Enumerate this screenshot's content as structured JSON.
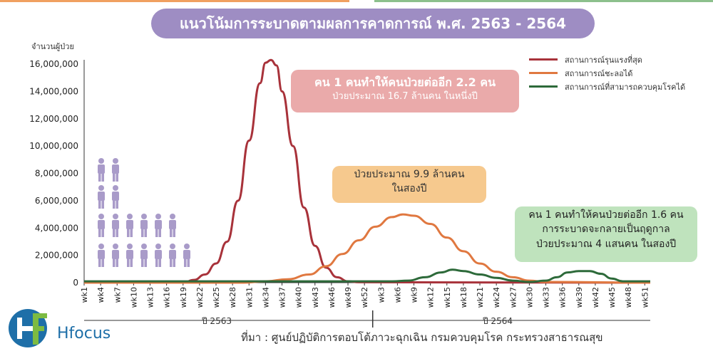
{
  "title": "แนวโน้มการระบาดตามผลการคาดการณ์ พ.ศ. 2563 - 2564",
  "chart_data": {
    "type": "line",
    "title": "แนวโน้มการระบาดตามผลการคาดการณ์ พ.ศ. 2563 - 2564",
    "ylabel": "จำนวนผู้ป่วย",
    "ylim": [
      0,
      16000000
    ],
    "yticks": [
      0,
      2000000,
      4000000,
      6000000,
      8000000,
      10000000,
      12000000,
      14000000,
      16000000
    ],
    "ytick_labels": [
      "0",
      "2,000,000",
      "4,000,000",
      "6,000,000",
      "8,000,000",
      "10,000,000",
      "12,000,000",
      "14,000,000",
      "16,000,000"
    ],
    "xlim": [
      1,
      104
    ],
    "xtick_weeks": [
      1,
      4,
      7,
      10,
      13,
      16,
      19,
      22,
      25,
      28,
      31,
      34,
      37,
      40,
      43,
      46,
      49,
      52,
      55,
      58,
      61,
      64,
      67,
      70,
      73,
      76,
      79,
      82,
      85,
      88,
      91,
      94,
      97,
      100,
      103
    ],
    "xtick_labels": [
      "wk1",
      "wk4",
      "wk7",
      "wk10",
      "wk13",
      "wk16",
      "wk19",
      "wk22",
      "wk25",
      "wk28",
      "wk31",
      "wk34",
      "wk37",
      "wk40",
      "wk43",
      "wk46",
      "wk49",
      "wk52",
      "wk3",
      "wk6",
      "wk9",
      "wk12",
      "wk15",
      "wk18",
      "wk21",
      "wk24",
      "wk27",
      "wk30",
      "wk33",
      "wk36",
      "wk39",
      "wk42",
      "wk45",
      "wk48",
      "wk51"
    ],
    "year_labels": [
      {
        "label": "ปี  2563",
        "weeks": [
          1,
          52
        ]
      },
      {
        "label": "ปี  2564",
        "weeks": [
          53,
          104
        ]
      }
    ],
    "legend_position": "top-right",
    "grid": false,
    "series": [
      {
        "name": "สถานการณ์รุนแรงที่สุด",
        "color": "#a8323a",
        "points": [
          [
            1,
            0
          ],
          [
            19,
            0
          ],
          [
            21,
            200000
          ],
          [
            23,
            600000
          ],
          [
            25,
            1400000
          ],
          [
            27,
            3000000
          ],
          [
            29,
            6000000
          ],
          [
            31,
            10400000
          ],
          [
            33,
            14600000
          ],
          [
            34,
            16100000
          ],
          [
            35,
            16300000
          ],
          [
            36,
            15900000
          ],
          [
            37,
            14000000
          ],
          [
            39,
            10000000
          ],
          [
            41,
            5500000
          ],
          [
            43,
            2700000
          ],
          [
            45,
            1100000
          ],
          [
            47,
            400000
          ],
          [
            49,
            100000
          ],
          [
            51,
            30000
          ],
          [
            104,
            0
          ]
        ]
      },
      {
        "name": "สถานการณ์ชะลอได้",
        "color": "#e07840",
        "points": [
          [
            1,
            0
          ],
          [
            30,
            0
          ],
          [
            34,
            100000
          ],
          [
            38,
            250000
          ],
          [
            42,
            600000
          ],
          [
            45,
            1200000
          ],
          [
            48,
            2100000
          ],
          [
            51,
            3100000
          ],
          [
            54,
            4100000
          ],
          [
            57,
            4800000
          ],
          [
            59,
            5000000
          ],
          [
            61,
            4900000
          ],
          [
            64,
            4300000
          ],
          [
            67,
            3300000
          ],
          [
            70,
            2300000
          ],
          [
            73,
            1400000
          ],
          [
            76,
            800000
          ],
          [
            79,
            400000
          ],
          [
            82,
            150000
          ],
          [
            85,
            50000
          ],
          [
            104,
            0
          ]
        ]
      },
      {
        "name": "สถานการณ์ที่สามารถควบคุมโรคได้",
        "color": "#2d6a3a",
        "points": [
          [
            1,
            100000
          ],
          [
            57,
            100000
          ],
          [
            60,
            150000
          ],
          [
            63,
            400000
          ],
          [
            66,
            750000
          ],
          [
            68,
            950000
          ],
          [
            70,
            850000
          ],
          [
            73,
            600000
          ],
          [
            76,
            350000
          ],
          [
            79,
            150000
          ],
          [
            82,
            50000
          ],
          [
            85,
            150000
          ],
          [
            87,
            400000
          ],
          [
            89,
            750000
          ],
          [
            91,
            850000
          ],
          [
            93,
            850000
          ],
          [
            95,
            650000
          ],
          [
            97,
            300000
          ],
          [
            99,
            100000
          ],
          [
            102,
            100000
          ],
          [
            104,
            100000
          ]
        ]
      }
    ]
  },
  "annotations": {
    "red_line1": "คน 1 คนทำให้คนป่วยต่ออีก 2.2 คน",
    "red_line2": "ป่วยประมาณ 16.7 ล้านคน ในหนึ่งปี",
    "orange_line1": "ป่วยประมาณ 9.9 ล้านคน",
    "orange_line2": "ในสองปี",
    "green_line1": "คน 1 คนทำให้คนป่วยต่ออีก 1.6 คน",
    "green_line2": "การระบาดจะกลายเป็นฤดูกาล",
    "green_line3": "ป่วยประมาณ 4 แสนคน ในสองปี"
  },
  "source": "ที่มา : ศูนย์ปฏิบัติการตอบโต้ภาวะฉุกเฉิน กรมควบคุมโรค กระทรวงสาธารณสุข",
  "logo_text": "Hfocus",
  "colors": {
    "purple": "#9e8dc3",
    "people": "#a99bc9",
    "axis": "#333333",
    "logo_blue": "#1e6fa8",
    "logo_green": "#7dbb42"
  }
}
